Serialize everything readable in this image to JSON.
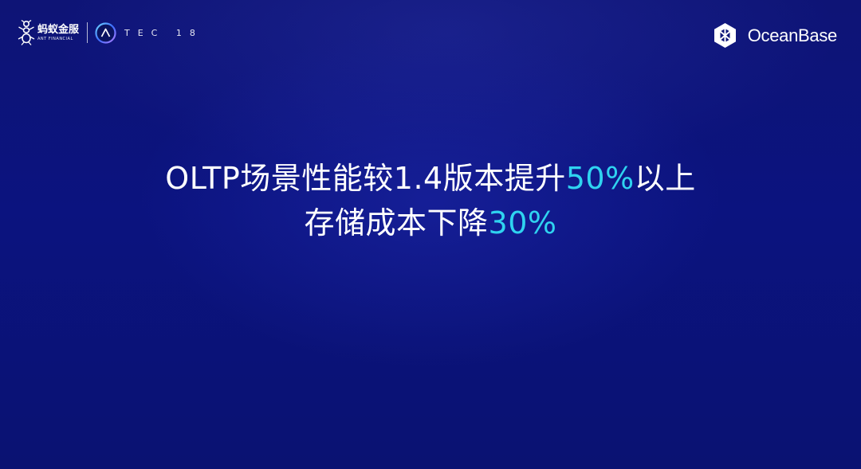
{
  "branding": {
    "ant_name_cn": "蚂蚁金服",
    "ant_name_en": "ANT FINANCIAL",
    "atec_text": "TEC 18",
    "product_name": "OceanBase",
    "icons": [
      "ant-icon",
      "atec-icon",
      "oceanbase-icon"
    ]
  },
  "headline": {
    "line1_prefix": "OLTP场景性能较1.4版本提升",
    "line1_value": "50%",
    "line1_suffix": "以上",
    "line2_prefix": "存储成本下降",
    "line2_value": "30%"
  },
  "colors": {
    "background": "#0b137f",
    "highlight": "#2fd3f0",
    "text": "#ffffff"
  }
}
